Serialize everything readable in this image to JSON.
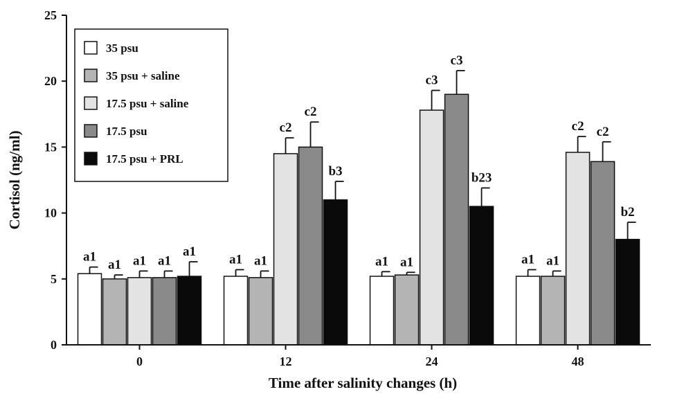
{
  "chart_data": {
    "type": "bar",
    "title": "",
    "xlabel": "Time after salinity changes (h)",
    "ylabel": "Cortisol (ng/ml)",
    "ylim": [
      0,
      25
    ],
    "yticks": [
      0,
      5,
      10,
      15,
      20,
      25
    ],
    "categories": [
      "0",
      "12",
      "24",
      "48"
    ],
    "grid": false,
    "legend_position": "top-left",
    "series": [
      {
        "name": "35 psu",
        "color": "#ffffff",
        "values": [
          5.4,
          5.2,
          5.2,
          5.2
        ],
        "errors": [
          0.5,
          0.5,
          0.35,
          0.5
        ],
        "labels": [
          "a1",
          "a1",
          "a1",
          "a1"
        ]
      },
      {
        "name": "35 psu + saline",
        "color": "#b4b4b4",
        "values": [
          5.0,
          5.1,
          5.3,
          5.2
        ],
        "errors": [
          0.3,
          0.5,
          0.2,
          0.4
        ],
        "labels": [
          "a1",
          "a1",
          "a1",
          "a1"
        ]
      },
      {
        "name": "17.5 psu + saline",
        "color": "#e3e3e3",
        "values": [
          5.1,
          14.5,
          17.8,
          14.6
        ],
        "errors": [
          0.5,
          1.2,
          1.5,
          1.2
        ],
        "labels": [
          "a1",
          "c2",
          "c3",
          "c2"
        ]
      },
      {
        "name": "17.5 psu",
        "color": "#8a8a8a",
        "values": [
          5.1,
          15.0,
          19.0,
          13.9
        ],
        "errors": [
          0.5,
          1.9,
          1.8,
          1.5
        ],
        "labels": [
          "a1",
          "c2",
          "c3",
          "c2"
        ]
      },
      {
        "name": "17.5 psu + PRL",
        "color": "#0a0a0a",
        "values": [
          5.2,
          11.0,
          10.5,
          8.0
        ],
        "errors": [
          1.1,
          1.4,
          1.4,
          1.3
        ],
        "labels": [
          "a1",
          "b3",
          "b23",
          "b2"
        ]
      }
    ]
  }
}
